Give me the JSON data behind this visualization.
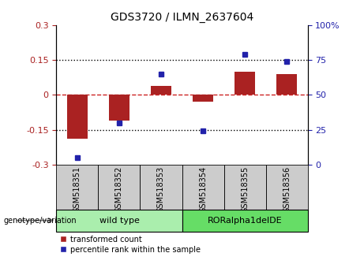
{
  "title": "GDS3720 / ILMN_2637604",
  "samples": [
    "GSM518351",
    "GSM518352",
    "GSM518353",
    "GSM518354",
    "GSM518355",
    "GSM518356"
  ],
  "red_values": [
    -0.19,
    -0.11,
    0.04,
    -0.03,
    0.1,
    0.09
  ],
  "blue_values": [
    5,
    30,
    65,
    24,
    79,
    74
  ],
  "ylim_left": [
    -0.3,
    0.3
  ],
  "ylim_right": [
    0,
    100
  ],
  "yticks_left": [
    -0.3,
    -0.15,
    0,
    0.15,
    0.3
  ],
  "yticks_right": [
    0,
    25,
    50,
    75,
    100
  ],
  "hlines_dotted": [
    -0.15,
    0.15
  ],
  "hline_zero": 0,
  "group1_label": "wild type",
  "group2_label": "RORalpha1delDE",
  "genotype_label": "genotype/variation",
  "legend_red": "transformed count",
  "legend_blue": "percentile rank within the sample",
  "bar_color": "#AA2222",
  "dot_color": "#2222AA",
  "group1_color": "#AAEEA A",
  "group2_color": "#66DD66",
  "zero_line_color": "#CC2222",
  "hline_color": "#000000",
  "sample_box_color": "#CCCCCC",
  "bar_width": 0.5
}
